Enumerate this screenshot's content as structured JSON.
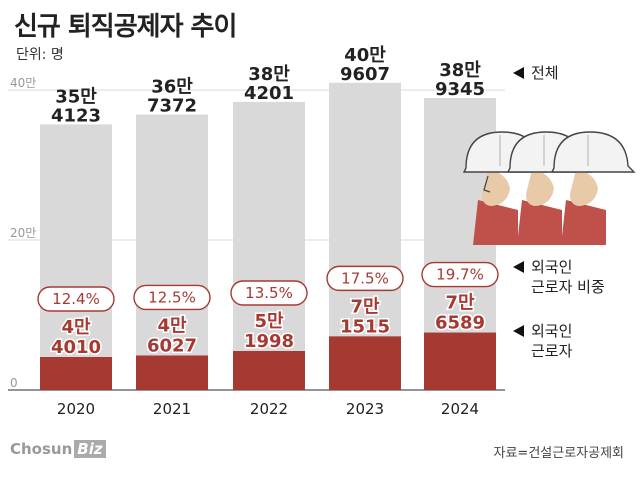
{
  "title": "신규 퇴직공제자 추이",
  "unit": "단위: 명",
  "source": "자료=건설근로자공제회",
  "logo": {
    "main": "Chosun",
    "biz": "Biz"
  },
  "colors": {
    "total": "#d9d9d9",
    "foreign": "#a63a33",
    "pill_border": "#a63a33",
    "pill_text": "#a63a33",
    "label_dark": "#222222"
  },
  "chart_data": {
    "type": "bar",
    "categories": [
      "2020",
      "2021",
      "2022",
      "2023",
      "2024"
    ],
    "ylim": [
      0,
      400000
    ],
    "y_ticks": [
      {
        "value": 0,
        "label": "0"
      },
      {
        "value": 200000,
        "label": "20만"
      },
      {
        "value": 400000,
        "label": "40만"
      }
    ],
    "series": [
      {
        "name": "전체",
        "values": [
          354123,
          367372,
          384201,
          409607,
          389345
        ],
        "labels": [
          [
            "35만",
            "4123"
          ],
          [
            "36만",
            "7372"
          ],
          [
            "38만",
            "4201"
          ],
          [
            "40만",
            "9607"
          ],
          [
            "38만",
            "9345"
          ]
        ]
      },
      {
        "name": "외국인 근로자",
        "values": [
          44010,
          46027,
          51998,
          71515,
          76589
        ],
        "labels": [
          [
            "4만",
            "4010"
          ],
          [
            "4만",
            "6027"
          ],
          [
            "5만",
            "1998"
          ],
          [
            "7만",
            "1515"
          ],
          [
            "7만",
            "6589"
          ]
        ]
      }
    ],
    "share": {
      "name": "외국인 근로자 비중",
      "values": [
        "12.4%",
        "12.5%",
        "13.5%",
        "17.5%",
        "19.7%"
      ]
    },
    "legend": [
      {
        "line1": "전체",
        "line2": ""
      },
      {
        "line1": "외국인",
        "line2": "근로자 비중"
      },
      {
        "line1": "외국인",
        "line2": "근로자"
      }
    ]
  }
}
